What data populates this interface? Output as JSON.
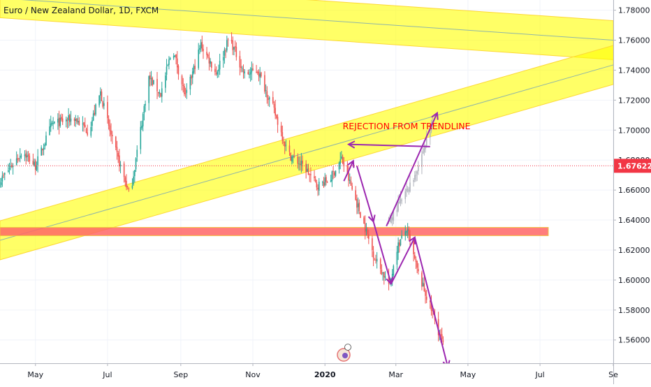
{
  "header": {
    "symbol_title": "Euro / New Zealand Dollar, 1D, FXCM"
  },
  "colors": {
    "up": "#26a69a",
    "down": "#ef5350",
    "projection": "#b2b5be",
    "zone_yellow": "#ffff00",
    "zone_red": "#ff6666",
    "arrow": "#9c27b0",
    "annotation": "#ff0000",
    "price_tag": "#f23645",
    "axis_text": "#131722"
  },
  "chart_data": {
    "type": "candlestick",
    "title": "Euro / New Zealand Dollar, 1D, FXCM",
    "ylim": [
      1.5445,
      1.7868
    ],
    "xlim": [
      "2019-04-01",
      "2020-09-01"
    ],
    "y_ticks": [
      "1.78000",
      "1.76000",
      "1.74000",
      "1.72000",
      "1.70000",
      "1.68000",
      "1.66000",
      "1.64000",
      "1.62000",
      "1.60000",
      "1.58000",
      "1.56000"
    ],
    "x_ticks": [
      {
        "label": "May",
        "date": "2019-05-01"
      },
      {
        "label": "Jul",
        "date": "2019-07-01"
      },
      {
        "label": "Sep",
        "date": "2019-09-01"
      },
      {
        "label": "Nov",
        "date": "2019-11-01"
      },
      {
        "label": "2020",
        "date": "2020-01-01"
      },
      {
        "label": "Mar",
        "date": "2020-03-01"
      },
      {
        "label": "May",
        "date": "2020-05-01"
      },
      {
        "label": "Jul",
        "date": "2020-07-01"
      },
      {
        "label": "Se",
        "date": "2020-09-01"
      }
    ],
    "last_price": "1.67622",
    "price_line": 1.6762,
    "close_path": [
      [
        "2019-04-01",
        1.666
      ],
      [
        "2019-04-20",
        1.686
      ],
      [
        "2019-05-01",
        1.676
      ],
      [
        "2019-05-15",
        1.704
      ],
      [
        "2019-06-03",
        1.708
      ],
      [
        "2019-06-15",
        1.699
      ],
      [
        "2019-06-25",
        1.725
      ],
      [
        "2019-07-05",
        1.693
      ],
      [
        "2019-07-20",
        1.656
      ],
      [
        "2019-08-05",
        1.735
      ],
      [
        "2019-08-15",
        1.724
      ],
      [
        "2019-08-25",
        1.755
      ],
      [
        "2019-09-05",
        1.722
      ],
      [
        "2019-09-18",
        1.757
      ],
      [
        "2019-10-01",
        1.738
      ],
      [
        "2019-10-12",
        1.762
      ],
      [
        "2019-10-25",
        1.737
      ],
      [
        "2019-11-05",
        1.74
      ],
      [
        "2019-11-18",
        1.715
      ],
      [
        "2019-12-01",
        1.684
      ],
      [
        "2019-12-15",
        1.675
      ],
      [
        "2019-12-25",
        1.663
      ],
      [
        "2020-01-05",
        1.667
      ],
      [
        "2020-01-15",
        1.681
      ],
      [
        "2020-02-01",
        1.642
      ],
      [
        "2020-02-12",
        1.615
      ],
      [
        "2020-02-25",
        1.596
      ],
      [
        "2020-03-01",
        1.62
      ],
      [
        "2020-03-10",
        1.634
      ],
      [
        "2020-03-20",
        1.604
      ],
      [
        "2020-04-01",
        1.578
      ],
      [
        "2020-04-12",
        1.552
      ]
    ],
    "projection_path": [
      [
        "2020-02-22",
        1.636
      ],
      [
        "2020-03-05",
        1.652
      ],
      [
        "2020-03-15",
        1.666
      ],
      [
        "2020-03-25",
        1.688
      ],
      [
        "2020-04-01",
        1.705
      ]
    ],
    "zones": [
      {
        "kind": "yellow",
        "from": [
          "2019-04-01",
          1.788
        ],
        "to": [
          "2020-09-01",
          1.76
        ],
        "thickness": 0.013
      },
      {
        "kind": "yellow",
        "from": [
          "2019-04-01",
          1.6265
        ],
        "to": [
          "2020-09-01",
          1.7435
        ],
        "thickness": 0.013
      },
      {
        "kind": "red",
        "from_date": "2019-04-01",
        "to_date": "2020-07-08",
        "low": 1.6296,
        "high": 1.6351
      }
    ],
    "annotations": [
      {
        "text": "REJECTION FROM TRENDLINE",
        "date": "2020-01-16",
        "price": 1.7005
      }
    ],
    "arrows": [
      {
        "from": [
          "2020-01-17",
          1.666
        ],
        "to": [
          "2020-01-25",
          1.6795
        ]
      },
      {
        "from": [
          "2020-01-28",
          1.6762
        ],
        "to": [
          "2020-02-11",
          1.639
        ]
      },
      {
        "from": [
          "2020-02-11",
          1.639
        ],
        "to": [
          "2020-02-26",
          1.5975
        ]
      },
      {
        "from": [
          "2020-02-26",
          1.5975
        ],
        "to": [
          "2020-03-17",
          1.6285
        ]
      },
      {
        "from": [
          "2020-03-17",
          1.6285
        ],
        "to": [
          "2020-04-14",
          1.542
        ]
      },
      {
        "from": [
          "2020-03-30",
          1.689
        ],
        "to": [
          "2020-01-21",
          1.6905
        ]
      },
      {
        "from": [
          "2020-02-22",
          1.636
        ],
        "to": [
          "2020-04-05",
          1.7115
        ]
      }
    ]
  }
}
